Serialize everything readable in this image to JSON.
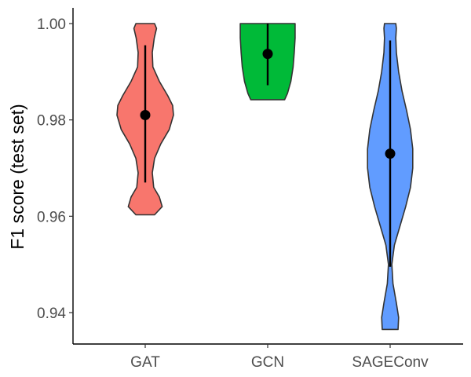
{
  "chart_data": {
    "type": "violin",
    "title": "",
    "xlabel": "",
    "ylabel": "F1 score (test set)",
    "ylim": [
      0.933,
      1.004
    ],
    "yticks": [
      0.94,
      0.96,
      0.98,
      1.0
    ],
    "ytick_labels": [
      "0.94",
      "0.96",
      "0.98",
      "1.00"
    ],
    "grid": false,
    "legend": "none",
    "categories": [
      "GAT",
      "GCN",
      "SAGEConv"
    ],
    "series": [
      {
        "category": "GAT",
        "color": "#F8766D",
        "mean": 0.981,
        "lower": 0.967,
        "upper": 0.9955,
        "min": 0.9603,
        "max": 1.0,
        "density": [
          [
            0.9603,
            0.33
          ],
          [
            0.962,
            0.6
          ],
          [
            0.964,
            0.5
          ],
          [
            0.966,
            0.3
          ],
          [
            0.969,
            0.25
          ],
          [
            0.972,
            0.33
          ],
          [
            0.975,
            0.55
          ],
          [
            0.978,
            0.85
          ],
          [
            0.981,
            1.0
          ],
          [
            0.983,
            0.97
          ],
          [
            0.985,
            0.8
          ],
          [
            0.988,
            0.5
          ],
          [
            0.991,
            0.27
          ],
          [
            0.994,
            0.25
          ],
          [
            0.997,
            0.32
          ],
          [
            0.999,
            0.4
          ],
          [
            1.0,
            0.33
          ]
        ]
      },
      {
        "category": "GCN",
        "color": "#00BA38",
        "mean": 0.9937,
        "lower": 0.9872,
        "upper": 1.0,
        "min": 0.9842,
        "max": 1.0,
        "density": [
          [
            0.9842,
            0.6
          ],
          [
            0.9855,
            0.7
          ],
          [
            0.988,
            0.82
          ],
          [
            0.991,
            0.9
          ],
          [
            0.994,
            0.94
          ],
          [
            0.997,
            0.97
          ],
          [
            1.0,
            0.97
          ]
        ]
      },
      {
        "category": "SAGEConv",
        "color": "#619CFF",
        "mean": 0.973,
        "lower": 0.9495,
        "upper": 0.9965,
        "min": 0.9365,
        "max": 1.0,
        "density": [
          [
            0.9365,
            0.28
          ],
          [
            0.939,
            0.3
          ],
          [
            0.942,
            0.22
          ],
          [
            0.946,
            0.1
          ],
          [
            0.95,
            0.06
          ],
          [
            0.954,
            0.15
          ],
          [
            0.958,
            0.35
          ],
          [
            0.962,
            0.55
          ],
          [
            0.966,
            0.72
          ],
          [
            0.97,
            0.8
          ],
          [
            0.974,
            0.8
          ],
          [
            0.978,
            0.72
          ],
          [
            0.982,
            0.58
          ],
          [
            0.986,
            0.42
          ],
          [
            0.99,
            0.3
          ],
          [
            0.994,
            0.22
          ],
          [
            0.997,
            0.2
          ],
          [
            0.999,
            0.22
          ],
          [
            1.0,
            0.2
          ]
        ]
      }
    ]
  }
}
